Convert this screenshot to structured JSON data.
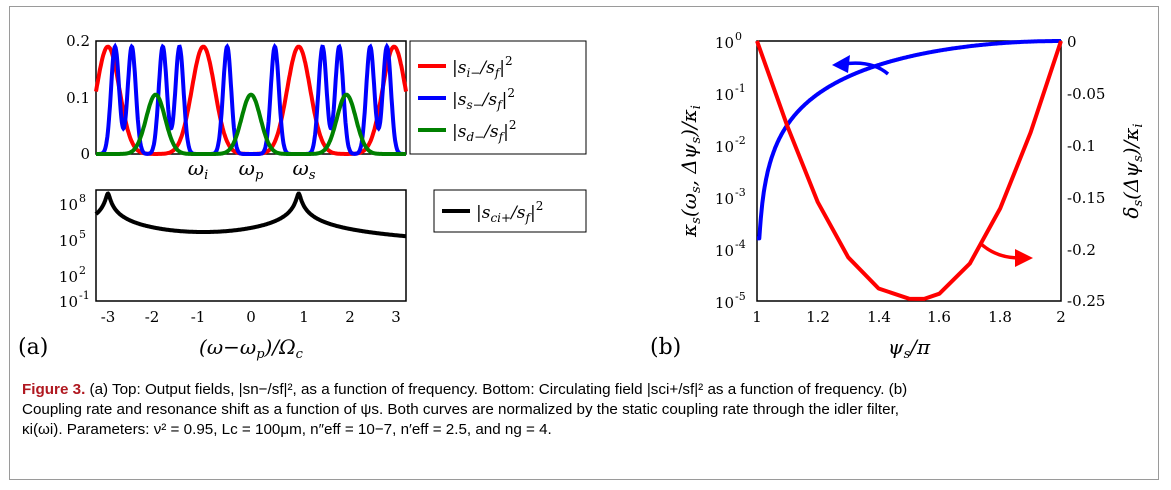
{
  "chart_data": [
    {
      "type": "line",
      "panel": "a-top",
      "xlim": [
        -3.25,
        3.25
      ],
      "ylim": [
        0,
        0.2
      ],
      "yticks": [
        "0",
        "0.1",
        "0.2"
      ],
      "markers": [
        {
          "x": -1,
          "label": "ωi"
        },
        {
          "x": 0,
          "label": "ωp"
        },
        {
          "x": 1,
          "label": "ωs"
        }
      ],
      "legend": [
        "|si−/sf|²",
        "|ss−/sf|²",
        "|sd−/sf|²"
      ],
      "series": [
        {
          "name": "|si−/sf|²",
          "color": "#ff0000",
          "peaks_at": [
            -3,
            -1,
            1,
            3
          ],
          "peak": 0.19
        },
        {
          "name": "|ss−/sf|²",
          "color": "#0000ff",
          "peaks_at": [
            -2.85,
            -2.5,
            -1.85,
            -1.5,
            -0.5,
            0.5,
            1.5,
            1.85,
            2.5,
            2.85
          ],
          "peak": 0.19
        },
        {
          "name": "|sd−/sf|²",
          "color": "#008000",
          "peaks_at": [
            -2,
            0,
            2
          ],
          "peak": 0.105
        }
      ]
    },
    {
      "type": "line",
      "panel": "a-bottom",
      "xlabel": "(ω−ωp)/Ωc",
      "xlim": [
        -3.25,
        3.25
      ],
      "xticks": [
        "-3",
        "-2",
        "-1",
        "0",
        "1",
        "2",
        "3"
      ],
      "ylim_log10": [
        -1,
        8.3
      ],
      "yscale": "log",
      "yticks": [
        "10-1",
        "102",
        "105",
        "108"
      ],
      "legend": [
        "|sci+/sf|²"
      ],
      "series": [
        {
          "name": "|sci+/sf|²",
          "color": "#000000",
          "baseline": 0.3,
          "peaks": [
            {
              "x": -3,
              "value": 100000000.0
            },
            {
              "x": -2,
              "value": 80
            },
            {
              "x": -1,
              "value": 30
            },
            {
              "x": 0,
              "value": 100
            },
            {
              "x": 1,
              "value": 100000000.0
            },
            {
              "x": 2,
              "value": 60
            },
            {
              "x": 3,
              "value": 25
            }
          ]
        }
      ]
    },
    {
      "type": "line",
      "panel": "b",
      "xlabel": "ψs/π",
      "ylabel_left": "κs(ωs, Δψs)/κi",
      "ylabel_right": "δs(Δψs)/κi",
      "xlim": [
        1,
        2
      ],
      "xticks": [
        "1",
        "1.2",
        "1.4",
        "1.6",
        "1.8",
        "2"
      ],
      "ylim_left_log10": [
        -5,
        0
      ],
      "yticks_left": [
        "10-5",
        "10-4",
        "10-3",
        "10-2",
        "10-1",
        "100"
      ],
      "ylim_right": [
        -0.25,
        0
      ],
      "yticks_right": [
        "0",
        "-0.05",
        "-0.1",
        "-0.15",
        "-0.2",
        "-0.25"
      ],
      "series": [
        {
          "name": "κs",
          "axis": "left",
          "color": "#0000ff",
          "x": [
            1.0,
            1.01,
            1.02,
            1.05,
            1.1,
            1.2,
            1.3,
            1.4,
            1.5,
            1.6,
            1.7,
            1.8,
            1.9,
            2.0
          ],
          "y": [
            0.0002,
            0.003,
            0.0092,
            0.0278,
            0.0769,
            0.217,
            0.384,
            0.554,
            0.705,
            0.826,
            0.913,
            0.968,
            0.994,
            1.0
          ]
        },
        {
          "name": "δs",
          "axis": "right",
          "color": "#ff0000",
          "x": [
            1.0,
            1.1,
            1.2,
            1.3,
            1.4,
            1.5,
            1.55,
            1.6,
            1.7,
            1.8,
            1.9,
            2.0
          ],
          "y": [
            0.0,
            -0.082,
            -0.155,
            -0.208,
            -0.238,
            -0.2478,
            -0.248,
            -0.243,
            -0.214,
            -0.161,
            -0.088,
            0.0
          ]
        }
      ]
    }
  ],
  "panel_labels": {
    "a": "(a)",
    "b": "(b)"
  },
  "caption": {
    "label": "Figure 3.",
    "line1": " (a) Top: Output fields, |sn−/sf|², as a function of frequency. Bottom: Circulating field |sci+/sf|² as a function of frequency. (b)",
    "line2": "Coupling rate and resonance shift as a function of ψs. Both curves are normalized by the static coupling rate through the idler filter,",
    "line3": "κi(ωi). Parameters: ν² = 0.95, Lc = 100μm, n″eff = 10−7, n′eff = 2.5, and ng = 4."
  }
}
